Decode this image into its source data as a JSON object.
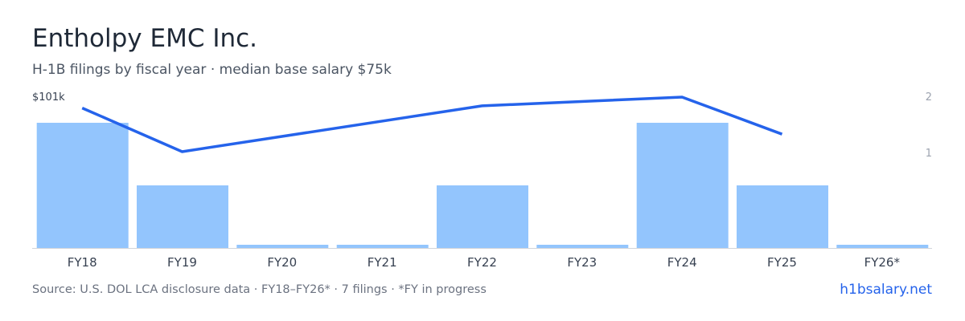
{
  "header": {
    "title": "Entholpy EMC Inc.",
    "subtitle": "H-1B filings by fiscal year · median base salary $75k"
  },
  "footer": {
    "source": "Source: U.S. DOL LCA disclosure data · FY18–FY26* · 7 filings · *FY in progress",
    "brand": "h1bsalary.net"
  },
  "colors": {
    "bar": "#93c5fd",
    "line": "#2563eb",
    "axis_text": "#374151",
    "muted_text": "#6b7280",
    "baseline": "#d1d5db"
  },
  "chart_data": {
    "type": "bar",
    "categories": [
      "FY18",
      "FY19",
      "FY20",
      "FY21",
      "FY22",
      "FY23",
      "FY24",
      "FY25",
      "FY26*"
    ],
    "series": [
      {
        "type": "bar",
        "axis": "right",
        "values": [
          2,
          1,
          0,
          0,
          1,
          0,
          2,
          1,
          0
        ]
      },
      {
        "type": "line",
        "axis": "left",
        "values": [
          96,
          76,
          null,
          null,
          97,
          null,
          101,
          84,
          null
        ]
      }
    ],
    "left_axis": {
      "label": "$101k",
      "max": 101,
      "min": 60
    },
    "right_axis": {
      "ticks": [
        "2",
        "1"
      ],
      "max": 2.3,
      "min": 0
    },
    "grid": false,
    "legend": "none"
  }
}
